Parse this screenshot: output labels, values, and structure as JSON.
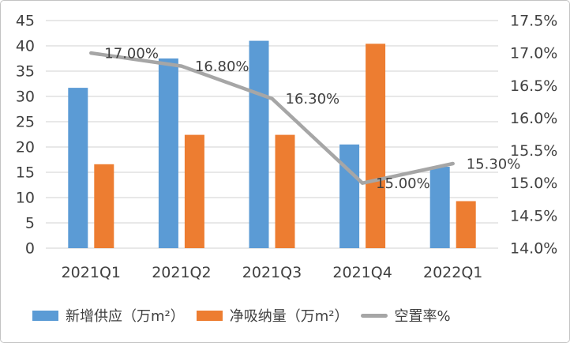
{
  "chart_data": {
    "type": "combo-bar-line",
    "title": "",
    "categories": [
      "2021Q1",
      "2021Q2",
      "2021Q3",
      "2021Q4",
      "2022Q1"
    ],
    "series": [
      {
        "name": "新增供应（万m²）",
        "type": "bar",
        "axis": "left",
        "color": "#5B9BD5",
        "values": [
          31.7,
          37.5,
          41.0,
          20.5,
          16.1
        ]
      },
      {
        "name": "净吸纳量（万m²）",
        "type": "bar",
        "axis": "left",
        "color": "#ED7D31",
        "values": [
          16.6,
          22.4,
          22.4,
          40.4,
          9.3
        ]
      },
      {
        "name": "空置率%",
        "type": "line",
        "axis": "right",
        "color": "#A6A6A6",
        "values": [
          17.0,
          16.8,
          16.3,
          15.0,
          15.3
        ],
        "point_labels": [
          "17.00%",
          "16.80%",
          "16.30%",
          "15.00%",
          "15.30%"
        ]
      }
    ],
    "left_axis": {
      "min": 0,
      "max": 45,
      "step": 5,
      "ticks": [
        "45",
        "40",
        "35",
        "30",
        "25",
        "20",
        "15",
        "10",
        "5",
        "0"
      ]
    },
    "right_axis": {
      "min": 14.0,
      "max": 17.5,
      "step": 0.5,
      "ticks": [
        "17.5%",
        "17.0%",
        "16.5%",
        "16.0%",
        "15.5%",
        "15.0%",
        "14.5%",
        "14.0%"
      ]
    },
    "grid": true,
    "gridline_color": "#D9D9D9",
    "text_color": "#404040",
    "legend_position": "bottom-left"
  }
}
